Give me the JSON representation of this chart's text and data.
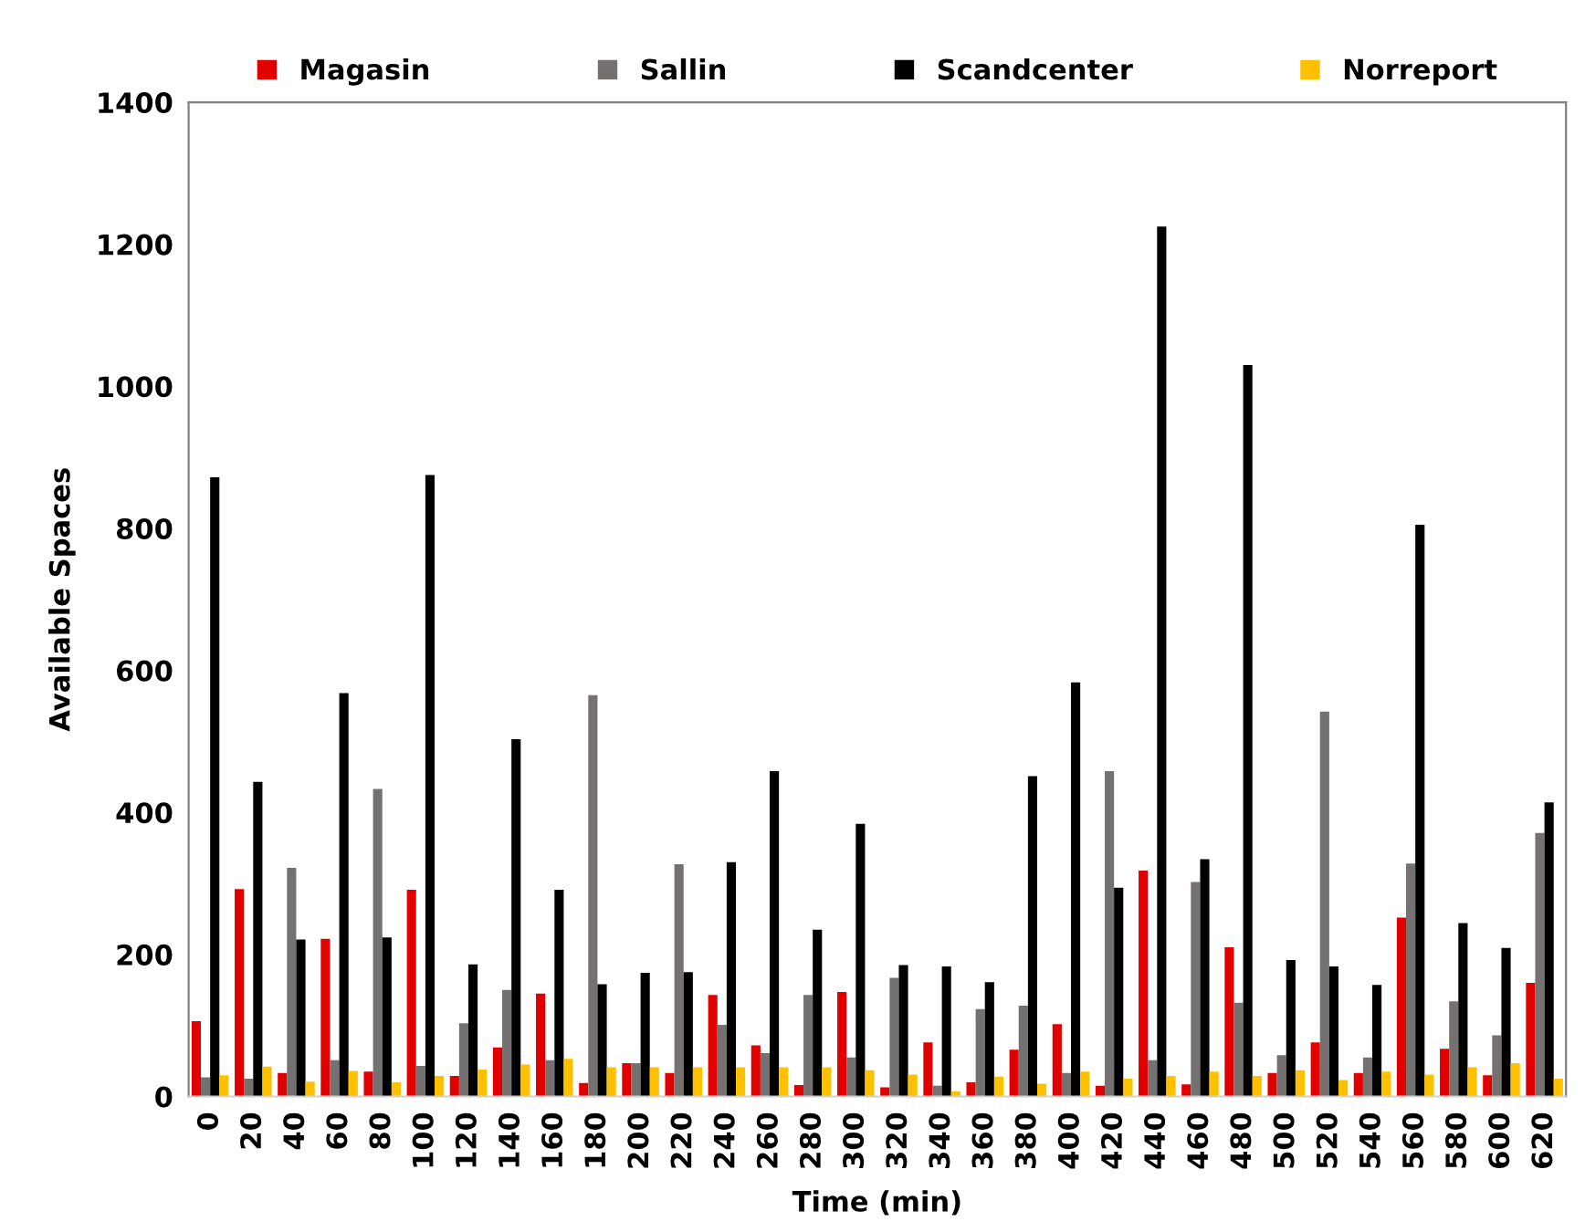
{
  "chart_data": {
    "type": "bar",
    "xlabel": "Time (min)",
    "ylabel": "Available Spaces",
    "categories": [
      "0",
      "20",
      "40",
      "60",
      "80",
      "100",
      "120",
      "140",
      "160",
      "180",
      "200",
      "220",
      "240",
      "260",
      "280",
      "300",
      "320",
      "340",
      "360",
      "380",
      "400",
      "420",
      "440",
      "460",
      "480",
      "500",
      "520",
      "540",
      "560",
      "580",
      "600",
      "620"
    ],
    "series": [
      {
        "name": "Magasin",
        "color": "#e00000",
        "values": [
          106,
          292,
          33,
          222,
          35,
          291,
          29,
          69,
          145,
          19,
          47,
          33,
          143,
          72,
          16,
          147,
          13,
          76,
          20,
          66,
          102,
          15,
          318,
          17,
          210,
          33,
          76,
          33,
          252,
          67,
          30,
          160
        ]
      },
      {
        "name": "Sallin",
        "color": "#767171",
        "values": [
          27,
          25,
          322,
          51,
          433,
          43,
          103,
          150,
          51,
          565,
          47,
          327,
          101,
          61,
          143,
          55,
          167,
          15,
          123,
          128,
          33,
          458,
          51,
          302,
          132,
          58,
          542,
          55,
          328,
          134,
          86,
          371
        ]
      },
      {
        "name": "Scandcenter",
        "color": "#000000",
        "values": [
          872,
          443,
          221,
          568,
          224,
          875,
          186,
          503,
          291,
          158,
          174,
          175,
          330,
          458,
          235,
          384,
          185,
          183,
          161,
          451,
          583,
          294,
          1225,
          334,
          1030,
          192,
          183,
          157,
          805,
          244,
          209,
          414
        ]
      },
      {
        "name": "Norreport",
        "color": "#ffc000",
        "values": [
          30,
          42,
          21,
          36,
          20,
          29,
          38,
          45,
          53,
          41,
          41,
          41,
          41,
          41,
          41,
          37,
          31,
          7,
          28,
          18,
          35,
          25,
          29,
          35,
          29,
          37,
          23,
          35,
          31,
          41,
          47,
          25
        ]
      }
    ],
    "ylim": [
      0,
      1400
    ],
    "yticks": [
      0,
      200,
      400,
      600,
      800,
      1000,
      1200,
      1400
    ],
    "grid": false,
    "legend": "top"
  }
}
